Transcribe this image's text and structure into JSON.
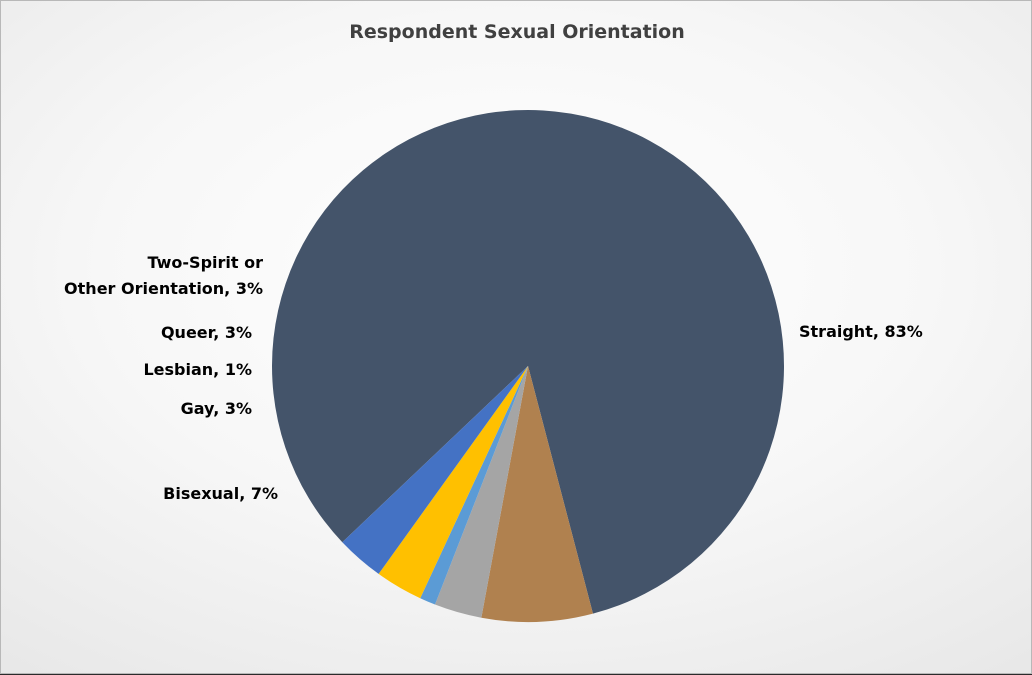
{
  "chart_data": {
    "type": "pie",
    "title": "Respondent Sexual Orientation",
    "slices": [
      {
        "label": "Straight",
        "value": 83,
        "display": "Straight, 83%",
        "color": "#44546a"
      },
      {
        "label": "Bisexual",
        "value": 7,
        "display": "Bisexual, 7%",
        "color": "#b0814f"
      },
      {
        "label": "Gay",
        "value": 3,
        "display": "Gay, 3%",
        "color": "#a5a5a5"
      },
      {
        "label": "Lesbian",
        "value": 1,
        "display": "Lesbian, 1%",
        "color": "#5b9bd5"
      },
      {
        "label": "Queer",
        "value": 3,
        "display": "Queer, 3%",
        "color": "#ffc000"
      },
      {
        "label": "Two-Spirit or Other Orientation",
        "value": 3,
        "display": "Two-Spirit or Other Orientation, 3%",
        "color": "#4472c4"
      }
    ],
    "legend": "none",
    "data_labels": "outside"
  }
}
